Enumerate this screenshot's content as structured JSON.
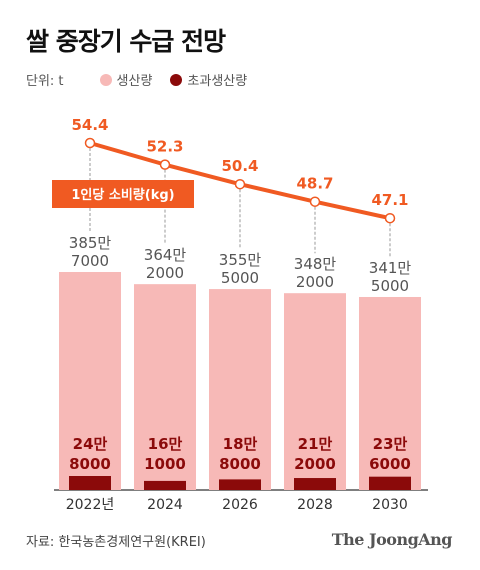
{
  "title": "쌀 중장기 수급 전망",
  "legend": {
    "unit_label": "단위: t",
    "production_label": "생산량",
    "excess_label": "초과생산량",
    "production_color": "#f7b9b7",
    "excess_color": "#8b0a0a"
  },
  "line_label": "1인당 소비량(kg)",
  "line_color": "#f05a22",
  "source": "자료: 한국농촌경제연구원(KREI)",
  "brand": "The JoongAng",
  "chart_data": {
    "type": "bar",
    "categories": [
      "2022년",
      "2024",
      "2026",
      "2028",
      "2030"
    ],
    "series": [
      {
        "name": "생산량",
        "values": [
          3857000,
          3642000,
          3555000,
          3482000,
          3415000
        ],
        "labels": [
          [
            "385만",
            "7000"
          ],
          [
            "364만",
            "2000"
          ],
          [
            "355만",
            "5000"
          ],
          [
            "348만",
            "2000"
          ],
          [
            "341만",
            "5000"
          ]
        ]
      },
      {
        "name": "초과생산량",
        "values": [
          248000,
          161000,
          188000,
          212000,
          236000
        ],
        "labels": [
          [
            "24만",
            "8000"
          ],
          [
            "16만",
            "1000"
          ],
          [
            "18만",
            "8000"
          ],
          [
            "21만",
            "2000"
          ],
          [
            "23만",
            "6000"
          ]
        ]
      },
      {
        "name": "1인당 소비량(kg)",
        "type": "line",
        "values": [
          54.4,
          52.3,
          50.4,
          48.7,
          47.1
        ],
        "labels": [
          "54.4",
          "52.3",
          "50.4",
          "48.7",
          "47.1"
        ]
      }
    ]
  }
}
